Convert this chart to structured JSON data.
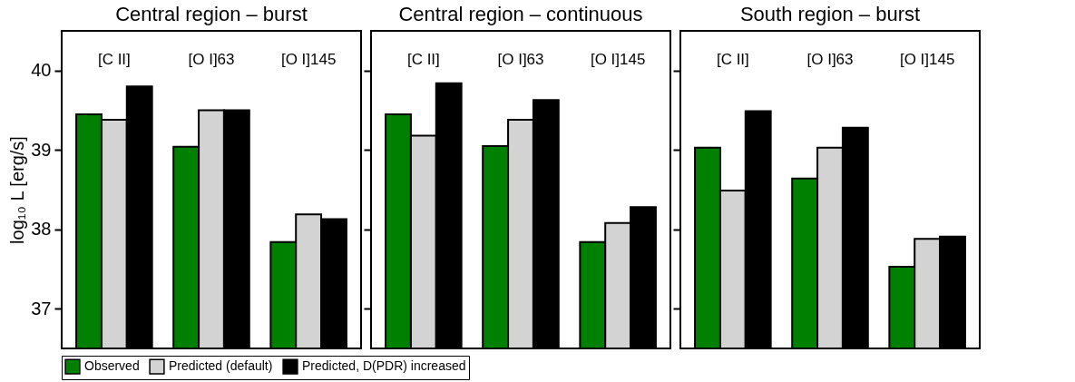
{
  "chart_data": [
    {
      "type": "bar",
      "title": "Central region – burst",
      "ylabel": "log₁₀ L [erg/s]",
      "categories": [
        "[C II]",
        "[O I]63",
        "[O I]145"
      ],
      "ylim": [
        36.5,
        40.5
      ],
      "yticks": [
        37,
        38,
        39,
        40
      ],
      "legend": "bottom",
      "series": [
        {
          "name": "Observed",
          "color": "#008000",
          "values": [
            39.45,
            39.04,
            37.84
          ]
        },
        {
          "name": "Predicted (default)",
          "color": "#d3d3d3",
          "values": [
            39.38,
            39.5,
            38.19
          ]
        },
        {
          "name": "Predicted, D(PDR) increased",
          "color": "#000000",
          "values": [
            39.8,
            39.5,
            38.13
          ]
        }
      ]
    },
    {
      "type": "bar",
      "title": "Central region – continuous",
      "categories": [
        "[C II]",
        "[O I]63",
        "[O I]145"
      ],
      "ylim": [
        36.5,
        40.5
      ],
      "yticks": [
        37,
        38,
        39,
        40
      ],
      "tick_labels": "x",
      "legend": "bottom",
      "series": [
        {
          "name": "Observed",
          "color": "#008000",
          "values": [
            39.45,
            39.05,
            37.84
          ]
        },
        {
          "name": "Predicted (default)",
          "color": "#d3d3d3",
          "values": [
            39.18,
            39.38,
            38.08
          ]
        },
        {
          "name": "Predicted, D(PDR) increased",
          "color": "#000000",
          "values": [
            39.84,
            39.63,
            38.28
          ]
        }
      ]
    },
    {
      "type": "bar",
      "title": "South region – burst",
      "categories": [
        "[C II]",
        "[O I]63",
        "[O I]145"
      ],
      "ylim": [
        36.5,
        40.5
      ],
      "yticks": [
        37,
        38,
        39,
        40
      ],
      "tick_labels": "x",
      "legend": "bottom",
      "series": [
        {
          "name": "Observed",
          "color": "#008000",
          "values": [
            39.03,
            38.64,
            37.53
          ]
        },
        {
          "name": "Predicted (default)",
          "color": "#d3d3d3",
          "values": [
            38.49,
            39.03,
            37.88
          ]
        },
        {
          "name": "Predicted, D(PDR) increased",
          "color": "#000000",
          "values": [
            39.49,
            39.28,
            37.91
          ]
        }
      ]
    }
  ]
}
